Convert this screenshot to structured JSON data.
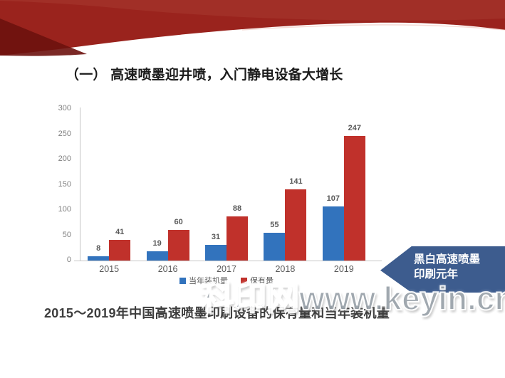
{
  "slide": {
    "title": "（一） 高速喷墨迎井喷，入门静电设备大增长",
    "caption": "2015～2019年中国高速喷墨印刷设备的保有量和当年装机量",
    "watermark": "科印网www.keyin.cn",
    "callout": {
      "line1": "黑白高速喷墨",
      "line2": "印刷元年",
      "color": "#3d5c8e",
      "text_color": "#ffffff"
    },
    "colors": {
      "header_red": "#9a231d",
      "header_red_dark": "#6d120e",
      "header_red_light": "#a83a30",
      "axis": "#c6c6c6",
      "tick_text": "#7f7f7f",
      "value_text": "#595959"
    }
  },
  "chart_data": {
    "type": "bar",
    "categories": [
      "2015",
      "2016",
      "2017",
      "2018",
      "2019"
    ],
    "series": [
      {
        "name": "当年装机量",
        "color": "#3273bd",
        "values": [
          8,
          19,
          31,
          55,
          107
        ]
      },
      {
        "name": "保有量",
        "color": "#c0312b",
        "values": [
          41,
          60,
          88,
          141,
          247
        ]
      }
    ],
    "title": "",
    "xlabel": "",
    "ylabel": "",
    "ylim": [
      0,
      300
    ],
    "ytick_step": 50,
    "grid": false,
    "legend_position": "bottom"
  }
}
